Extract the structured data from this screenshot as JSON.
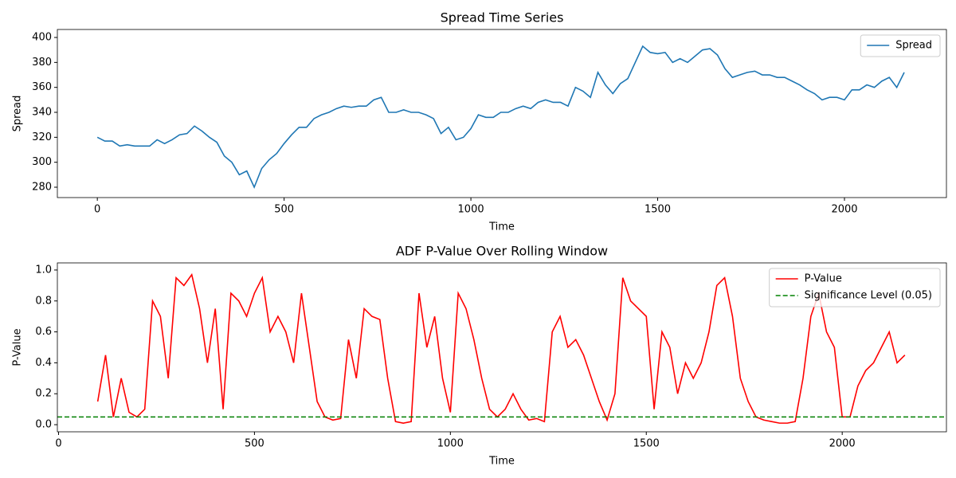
{
  "chart_data": [
    {
      "type": "line",
      "title": "Spread Time Series",
      "xlabel": "Time",
      "ylabel": "Spread",
      "x": [
        0,
        20,
        40,
        60,
        80,
        100,
        120,
        140,
        160,
        180,
        200,
        220,
        240,
        260,
        280,
        300,
        320,
        340,
        360,
        380,
        400,
        420,
        440,
        460,
        480,
        500,
        520,
        540,
        560,
        580,
        600,
        620,
        640,
        660,
        680,
        700,
        720,
        740,
        760,
        780,
        800,
        820,
        840,
        860,
        880,
        900,
        920,
        940,
        960,
        980,
        1000,
        1020,
        1040,
        1060,
        1080,
        1100,
        1120,
        1140,
        1160,
        1180,
        1200,
        1220,
        1240,
        1260,
        1280,
        1300,
        1320,
        1340,
        1360,
        1380,
        1400,
        1420,
        1440,
        1460,
        1480,
        1500,
        1520,
        1540,
        1560,
        1580,
        1600,
        1620,
        1640,
        1660,
        1680,
        1700,
        1720,
        1740,
        1760,
        1780,
        1800,
        1820,
        1840,
        1860,
        1880,
        1900,
        1920,
        1940,
        1960,
        1980,
        2000,
        2020,
        2040,
        2060,
        2080,
        2100,
        2120,
        2140,
        2160
      ],
      "series": [
        {
          "name": "Spread",
          "color": "#1f77b4",
          "values": [
            320,
            317,
            317,
            313,
            314,
            313,
            313,
            313,
            318,
            315,
            318,
            322,
            323,
            329,
            325,
            320,
            316,
            305,
            300,
            290,
            293,
            280,
            295,
            302,
            307,
            315,
            322,
            328,
            328,
            335,
            338,
            340,
            343,
            345,
            344,
            345,
            345,
            350,
            352,
            340,
            340,
            342,
            340,
            340,
            338,
            335,
            323,
            328,
            318,
            320,
            327,
            338,
            336,
            336,
            340,
            340,
            343,
            345,
            343,
            348,
            350,
            348,
            348,
            345,
            360,
            357,
            352,
            372,
            362,
            355,
            363,
            367,
            380,
            393,
            388,
            387,
            388,
            380,
            383,
            380,
            385,
            390,
            391,
            386,
            375,
            368,
            370,
            372,
            373,
            370,
            370,
            368,
            368,
            365,
            362,
            358,
            355,
            350,
            352,
            352,
            350,
            358,
            358,
            362,
            360,
            365,
            368,
            360,
            372
          ]
        }
      ],
      "xlim": [
        -107,
        2273
      ],
      "ylim": [
        271.7,
        406.4
      ],
      "xticks": [
        0,
        500,
        1000,
        1500,
        2000
      ],
      "yticks": [
        280,
        300,
        320,
        340,
        360,
        380,
        400
      ],
      "legend": "upper right"
    },
    {
      "type": "line",
      "title": "ADF P-Value Over Rolling Window",
      "xlabel": "Time",
      "ylabel": "P-Value",
      "x": [
        100,
        120,
        140,
        160,
        180,
        200,
        220,
        240,
        260,
        280,
        300,
        320,
        340,
        360,
        380,
        400,
        420,
        440,
        460,
        480,
        500,
        520,
        540,
        560,
        580,
        600,
        620,
        640,
        660,
        680,
        700,
        720,
        740,
        760,
        780,
        800,
        820,
        840,
        860,
        880,
        900,
        920,
        940,
        960,
        980,
        1000,
        1020,
        1040,
        1060,
        1080,
        1100,
        1120,
        1140,
        1160,
        1180,
        1200,
        1220,
        1240,
        1260,
        1280,
        1300,
        1320,
        1340,
        1360,
        1380,
        1400,
        1420,
        1440,
        1460,
        1480,
        1500,
        1520,
        1540,
        1560,
        1580,
        1600,
        1620,
        1640,
        1660,
        1680,
        1700,
        1720,
        1740,
        1760,
        1780,
        1800,
        1820,
        1840,
        1860,
        1880,
        1900,
        1920,
        1940,
        1960,
        1980,
        2000,
        2020,
        2040,
        2060,
        2080,
        2100,
        2120,
        2140,
        2160
      ],
      "series": [
        {
          "name": "P-Value",
          "color": "#ff0000",
          "values": [
            0.15,
            0.45,
            0.05,
            0.3,
            0.08,
            0.05,
            0.1,
            0.8,
            0.7,
            0.3,
            0.95,
            0.9,
            0.97,
            0.75,
            0.4,
            0.75,
            0.1,
            0.85,
            0.8,
            0.7,
            0.85,
            0.95,
            0.6,
            0.7,
            0.6,
            0.4,
            0.85,
            0.5,
            0.15,
            0.05,
            0.03,
            0.04,
            0.55,
            0.3,
            0.75,
            0.7,
            0.68,
            0.3,
            0.02,
            0.01,
            0.02,
            0.85,
            0.5,
            0.7,
            0.3,
            0.08,
            0.85,
            0.75,
            0.55,
            0.3,
            0.1,
            0.05,
            0.1,
            0.2,
            0.1,
            0.03,
            0.04,
            0.02,
            0.6,
            0.7,
            0.5,
            0.55,
            0.45,
            0.3,
            0.15,
            0.03,
            0.2,
            0.95,
            0.8,
            0.75,
            0.7,
            0.1,
            0.6,
            0.5,
            0.2,
            0.4,
            0.3,
            0.4,
            0.6,
            0.9,
            0.95,
            0.7,
            0.3,
            0.15,
            0.05,
            0.03,
            0.02,
            0.01,
            0.01,
            0.02,
            0.3,
            0.7,
            0.85,
            0.6,
            0.5,
            0.05,
            0.05,
            0.25,
            0.35,
            0.4,
            0.5,
            0.6,
            0.4,
            0.45
          ]
        }
      ],
      "hlines": [
        {
          "name": "Significance Level (0.05)",
          "color": "#008000",
          "value": 0.05,
          "style": "dashed"
        }
      ],
      "xlim": [
        -3,
        2266
      ],
      "ylim": [
        -0.046,
        1.046
      ],
      "xticks": [
        0,
        500,
        1000,
        1500,
        2000
      ],
      "yticks": [
        {
          "value": 0,
          "label": "0.0"
        },
        0.2,
        0.4,
        0.6,
        0.8,
        {
          "value": 1,
          "label": "1.0"
        }
      ],
      "legend": "upper right"
    }
  ]
}
